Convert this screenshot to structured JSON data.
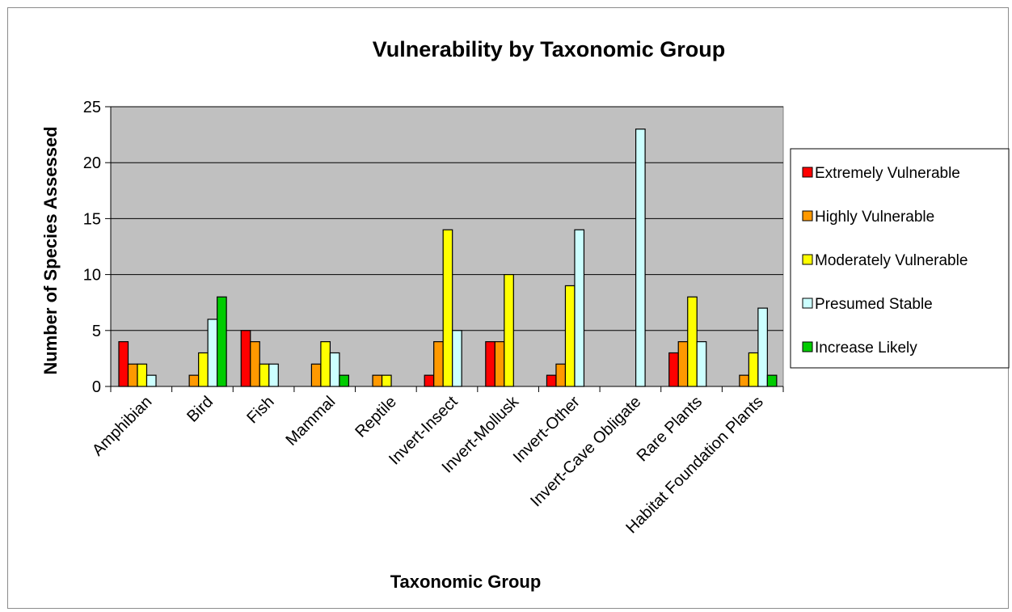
{
  "chart_data": {
    "type": "bar",
    "title": "Vulnerability by Taxonomic Group",
    "xlabel": "Taxonomic Group",
    "ylabel": "Number of Species Assessed",
    "ylim": [
      0,
      25
    ],
    "yticks": [
      0,
      5,
      10,
      15,
      20,
      25
    ],
    "grid": true,
    "legend_position": "right",
    "plot_background": "#c0c0c0",
    "categories": [
      "Amphibian",
      "Bird",
      "Fish",
      "Mammal",
      "Reptile",
      "Invert-Insect",
      "Invert-Mollusk",
      "Invert-Other",
      "Invert-Cave Obligate",
      "Rare Plants",
      "Habitat Foundation Plants"
    ],
    "series": [
      {
        "name": "Extremely Vulnerable",
        "color": "#ff0000",
        "values": [
          4,
          0,
          5,
          0,
          0,
          1,
          4,
          1,
          0,
          3,
          0
        ]
      },
      {
        "name": "Highly Vulnerable",
        "color": "#ff9900",
        "values": [
          2,
          1,
          4,
          2,
          1,
          4,
          4,
          2,
          0,
          4,
          1
        ]
      },
      {
        "name": "Moderately Vulnerable",
        "color": "#ffff00",
        "values": [
          2,
          3,
          2,
          4,
          1,
          14,
          10,
          9,
          0,
          8,
          3
        ]
      },
      {
        "name": "Presumed Stable",
        "color": "#ccffff",
        "values": [
          1,
          6,
          2,
          3,
          0,
          5,
          0,
          14,
          23,
          4,
          7
        ]
      },
      {
        "name": "Increase Likely",
        "color": "#00cc00",
        "values": [
          0,
          8,
          0,
          1,
          0,
          0,
          0,
          0,
          0,
          0,
          1
        ]
      }
    ]
  }
}
